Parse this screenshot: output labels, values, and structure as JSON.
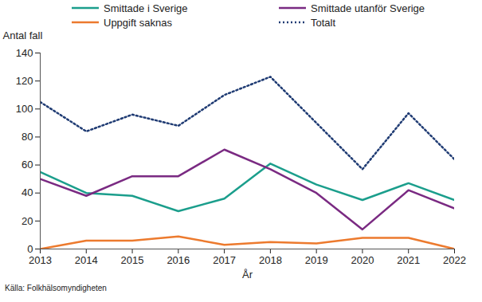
{
  "chart_data": {
    "type": "line",
    "x": [
      2013,
      2014,
      2015,
      2016,
      2017,
      2018,
      2019,
      2020,
      2021,
      2022
    ],
    "xlim": [
      2013,
      2022
    ],
    "xticks": [
      2013,
      2014,
      2015,
      2016,
      2017,
      2018,
      2019,
      2020,
      2021,
      2022
    ],
    "ylim": [
      0,
      140
    ],
    "yticks": [
      0,
      20,
      40,
      60,
      80,
      100,
      120,
      140
    ],
    "xlabel": "År",
    "ylabel": "Antal fall",
    "caption": "Källa: Folkhälsomyndigheten",
    "grid": false,
    "legend": "top",
    "series": [
      {
        "name": "Smittade i Sverige",
        "color": "#1b9e8c",
        "line_style": "solid",
        "values": [
          55,
          40,
          38,
          27,
          36,
          61,
          46,
          35,
          47,
          35
        ]
      },
      {
        "name": "Smittade utanför Sverige",
        "color": "#7a2a82",
        "line_style": "solid",
        "values": [
          50,
          38,
          52,
          52,
          71,
          57,
          40,
          14,
          42,
          29
        ]
      },
      {
        "name": "Uppgift saknas",
        "color": "#ec7a2e",
        "line_style": "solid",
        "values": [
          0,
          6,
          6,
          9,
          3,
          5,
          4,
          8,
          8,
          0
        ]
      },
      {
        "name": "Totalt",
        "color": "#1f3b73",
        "line_style": "dotted",
        "values": [
          105,
          84,
          96,
          88,
          110,
          123,
          90,
          57,
          97,
          64
        ]
      }
    ]
  }
}
